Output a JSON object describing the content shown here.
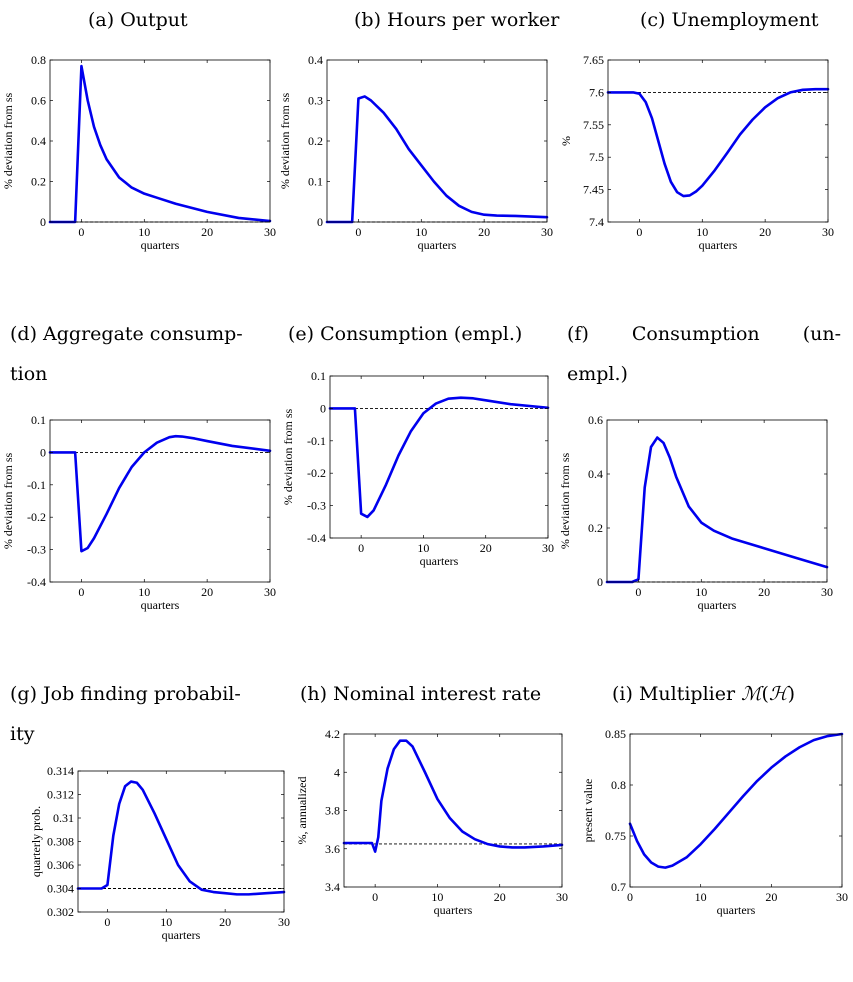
{
  "chart_data": [
    {
      "type": "line",
      "title": "(a) Output",
      "xlabel": "quarters",
      "ylabel": "% deviation from ss",
      "xlim": [
        -5,
        30
      ],
      "ylim": [
        0,
        0.8
      ],
      "xticks": [
        0,
        10,
        20,
        30
      ],
      "yticks": [
        0,
        0.2,
        0.4,
        0.6,
        0.8
      ],
      "ytick_labels": [
        "0",
        "0.2",
        "0.4",
        "0.6",
        "0.8"
      ],
      "reference_line": 0,
      "series": [
        {
          "color": "#0000ee",
          "x": [
            -5,
            -1,
            0,
            1,
            2,
            3,
            4,
            6,
            8,
            10,
            12,
            15,
            20,
            25,
            30
          ],
          "y": [
            0,
            0,
            0.77,
            0.6,
            0.47,
            0.38,
            0.31,
            0.22,
            0.17,
            0.14,
            0.12,
            0.09,
            0.05,
            0.02,
            0.005
          ]
        }
      ]
    },
    {
      "type": "line",
      "title": "(b) Hours per worker",
      "xlabel": "quarters",
      "ylabel": "% deviation from ss",
      "xlim": [
        -5,
        30
      ],
      "ylim": [
        0,
        0.4
      ],
      "xticks": [
        0,
        10,
        20,
        30
      ],
      "yticks": [
        0,
        0.1,
        0.2,
        0.3,
        0.4
      ],
      "ytick_labels": [
        "0",
        "0.1",
        "0.2",
        "0.3",
        "0.4"
      ],
      "reference_line": 0,
      "series": [
        {
          "color": "#0000ee",
          "x": [
            -5,
            -1,
            0,
            1,
            2,
            4,
            6,
            8,
            10,
            12,
            14,
            16,
            18,
            20,
            22,
            25,
            30
          ],
          "y": [
            0,
            0,
            0.305,
            0.31,
            0.3,
            0.27,
            0.23,
            0.18,
            0.14,
            0.1,
            0.065,
            0.04,
            0.025,
            0.018,
            0.016,
            0.015,
            0.012
          ]
        }
      ]
    },
    {
      "type": "line",
      "title": "(c) Unemployment",
      "xlabel": "quarters",
      "ylabel": "%",
      "xlim": [
        -5,
        30
      ],
      "ylim": [
        7.4,
        7.65
      ],
      "xticks": [
        0,
        10,
        20,
        30
      ],
      "yticks": [
        7.4,
        7.45,
        7.5,
        7.55,
        7.6,
        7.65
      ],
      "ytick_labels": [
        "7.4",
        "7.45",
        "7.5",
        "7.55",
        "7.6",
        "7.65"
      ],
      "reference_line": 7.6,
      "series": [
        {
          "color": "#0000ee",
          "x": [
            -5,
            -1,
            0,
            1,
            2,
            3,
            4,
            5,
            6,
            7,
            8,
            9,
            10,
            12,
            14,
            16,
            18,
            20,
            22,
            24,
            26,
            28,
            30
          ],
          "y": [
            7.6,
            7.6,
            7.598,
            7.585,
            7.56,
            7.525,
            7.49,
            7.462,
            7.446,
            7.44,
            7.441,
            7.447,
            7.456,
            7.48,
            7.507,
            7.535,
            7.558,
            7.577,
            7.591,
            7.6,
            7.604,
            7.605,
            7.605
          ]
        }
      ]
    },
    {
      "type": "line",
      "title": "(d) Aggregate consumption",
      "xlabel": "quarters",
      "ylabel": "% deviation from ss",
      "xlim": [
        -5,
        30
      ],
      "ylim": [
        -0.4,
        0.1
      ],
      "xticks": [
        0,
        10,
        20,
        30
      ],
      "yticks": [
        -0.4,
        -0.3,
        -0.2,
        -0.1,
        0,
        0.1
      ],
      "ytick_labels": [
        "-0.4",
        "-0.3",
        "-0.2",
        "-0.1",
        "0",
        "0.1"
      ],
      "reference_line": 0,
      "series": [
        {
          "color": "#0000ee",
          "x": [
            -5,
            -1,
            0,
            1,
            2,
            4,
            6,
            8,
            10,
            12,
            14,
            15,
            16,
            18,
            20,
            24,
            30
          ],
          "y": [
            0,
            0,
            -0.305,
            -0.295,
            -0.265,
            -0.19,
            -0.11,
            -0.045,
            0,
            0.03,
            0.047,
            0.05,
            0.049,
            0.043,
            0.035,
            0.02,
            0.005
          ]
        }
      ]
    },
    {
      "type": "line",
      "title": "(e) Consumption (empl.)",
      "xlabel": "quarters",
      "ylabel": "% deviation from ss",
      "xlim": [
        -5,
        30
      ],
      "ylim": [
        -0.4,
        0.1
      ],
      "xticks": [
        0,
        10,
        20,
        30
      ],
      "yticks": [
        -0.4,
        -0.3,
        -0.2,
        -0.1,
        0,
        0.1
      ],
      "ytick_labels": [
        "-0.4",
        "-0.3",
        "-0.2",
        "-0.1",
        "0",
        "0.1"
      ],
      "reference_line": 0,
      "series": [
        {
          "color": "#0000ee",
          "x": [
            -5,
            -1,
            0,
            1,
            2,
            4,
            6,
            8,
            10,
            12,
            14,
            16,
            18,
            20,
            24,
            30
          ],
          "y": [
            0,
            0,
            -0.325,
            -0.335,
            -0.315,
            -0.235,
            -0.145,
            -0.07,
            -0.015,
            0.015,
            0.03,
            0.033,
            0.031,
            0.025,
            0.013,
            0.002
          ]
        }
      ]
    },
    {
      "type": "line",
      "title": "(f) Consumption (unempl.)",
      "xlabel": "quarters",
      "ylabel": "% deviation from ss",
      "xlim": [
        -5,
        30
      ],
      "ylim": [
        0,
        0.6
      ],
      "xticks": [
        0,
        10,
        20,
        30
      ],
      "yticks": [
        0,
        0.2,
        0.4,
        0.6
      ],
      "ytick_labels": [
        "0",
        "0.2",
        "0.4",
        "0.6"
      ],
      "reference_line": 0,
      "series": [
        {
          "color": "#0000ee",
          "x": [
            -5,
            -1,
            0,
            1,
            2,
            3,
            4,
            5,
            6,
            8,
            10,
            12,
            15,
            20,
            25,
            30
          ],
          "y": [
            0,
            0,
            0.01,
            0.35,
            0.5,
            0.535,
            0.515,
            0.46,
            0.39,
            0.28,
            0.22,
            0.19,
            0.16,
            0.125,
            0.09,
            0.055
          ]
        }
      ]
    },
    {
      "type": "line",
      "title": "(g) Job finding probability",
      "xlabel": "quarters",
      "ylabel": "quarterly prob.",
      "xlim": [
        -5,
        30
      ],
      "ylim": [
        0.302,
        0.314
      ],
      "xticks": [
        0,
        10,
        20,
        30
      ],
      "yticks": [
        0.302,
        0.304,
        0.306,
        0.308,
        0.31,
        0.312,
        0.314
      ],
      "ytick_labels": [
        "0.302",
        "0.304",
        "0.306",
        "0.308",
        "0.31",
        "0.312",
        "0.314"
      ],
      "reference_line": 0.304,
      "series": [
        {
          "color": "#0000ee",
          "x": [
            -5,
            -1,
            0,
            1,
            2,
            3,
            4,
            5,
            6,
            8,
            10,
            12,
            14,
            16,
            18,
            20,
            22,
            24,
            27,
            30
          ],
          "y": [
            0.304,
            0.304,
            0.3043,
            0.3085,
            0.3112,
            0.3127,
            0.3131,
            0.313,
            0.3124,
            0.3104,
            0.3082,
            0.306,
            0.3046,
            0.3039,
            0.3037,
            0.3036,
            0.3035,
            0.3035,
            0.3036,
            0.3037
          ]
        }
      ]
    },
    {
      "type": "line",
      "title": "(h) Nominal interest rate",
      "xlabel": "quarters",
      "ylabel": "%, annualized",
      "xlim": [
        -5,
        30
      ],
      "ylim": [
        3.4,
        4.2
      ],
      "xticks": [
        0,
        10,
        20,
        30
      ],
      "yticks": [
        3.4,
        3.6,
        3.8,
        4,
        4.2
      ],
      "ytick_labels": [
        "3.4",
        "3.6",
        "3.8",
        "4",
        "4.2"
      ],
      "reference_line": 3.625,
      "series": [
        {
          "color": "#0000ee",
          "x": [
            -5,
            -0.5,
            0,
            0.5,
            1,
            2,
            3,
            4,
            5,
            6,
            8,
            10,
            12,
            14,
            16,
            18,
            20,
            22,
            24,
            27,
            30
          ],
          "y": [
            3.63,
            3.63,
            3.585,
            3.66,
            3.85,
            4.02,
            4.12,
            4.165,
            4.165,
            4.135,
            4.0,
            3.86,
            3.76,
            3.69,
            3.65,
            3.625,
            3.612,
            3.607,
            3.607,
            3.612,
            3.62
          ]
        }
      ]
    },
    {
      "type": "line",
      "title": "(i) Multiplier M(H)",
      "xlabel": "quarters",
      "ylabel": "present value",
      "xlim": [
        0,
        30
      ],
      "ylim": [
        0.7,
        0.85
      ],
      "xticks": [
        0,
        10,
        20,
        30
      ],
      "yticks": [
        0.7,
        0.75,
        0.8,
        0.85
      ],
      "ytick_labels": [
        "0.7",
        "0.75",
        "0.8",
        "0.85"
      ],
      "reference_line": null,
      "series": [
        {
          "color": "#0000ee",
          "x": [
            0,
            1,
            2,
            3,
            4,
            5,
            6,
            8,
            10,
            12,
            14,
            16,
            18,
            20,
            22,
            24,
            26,
            28,
            30
          ],
          "y": [
            0.762,
            0.745,
            0.732,
            0.724,
            0.72,
            0.719,
            0.721,
            0.729,
            0.742,
            0.757,
            0.773,
            0.789,
            0.804,
            0.817,
            0.828,
            0.837,
            0.844,
            0.848,
            0.85
          ]
        }
      ]
    }
  ],
  "titles": [
    "(a) Output",
    "(b) Hours per worker",
    "(c) Unemployment",
    "(d) Aggregate consumption",
    "(e) Consumption (empl.)",
    "(f) Consumption (unempl.)",
    "(g) Job finding probability",
    "(h) Nominal interest rate",
    "(i) Multiplier M(H)"
  ]
}
